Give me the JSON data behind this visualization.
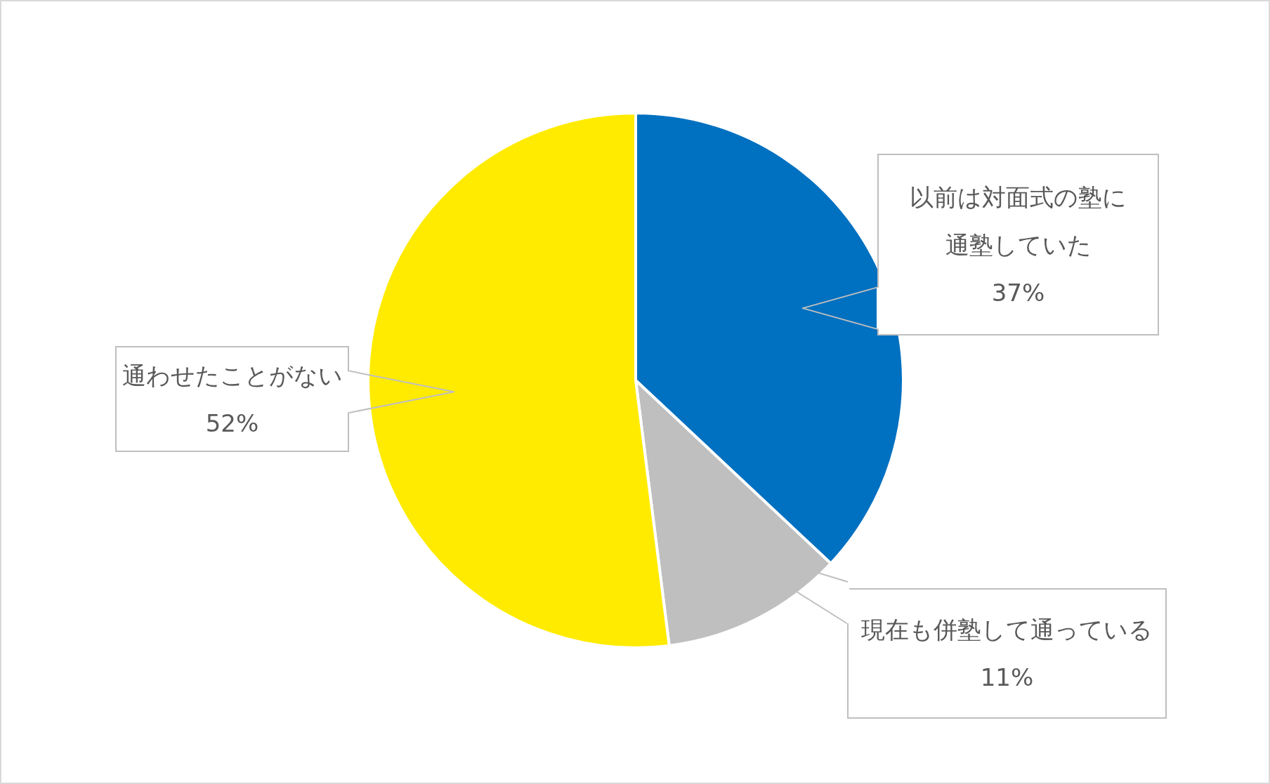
{
  "chart_data": {
    "type": "pie",
    "categories": [
      "以前は対面式の塾に通塾していた",
      "現在も併塾して通っている",
      "通わせたことがない"
    ],
    "values": [
      37,
      11,
      52
    ],
    "colors": [
      "#0070c0",
      "#bfbfbf",
      "#ffeb00"
    ],
    "value_labels": [
      "37%",
      "11%",
      "52%"
    ]
  }
}
